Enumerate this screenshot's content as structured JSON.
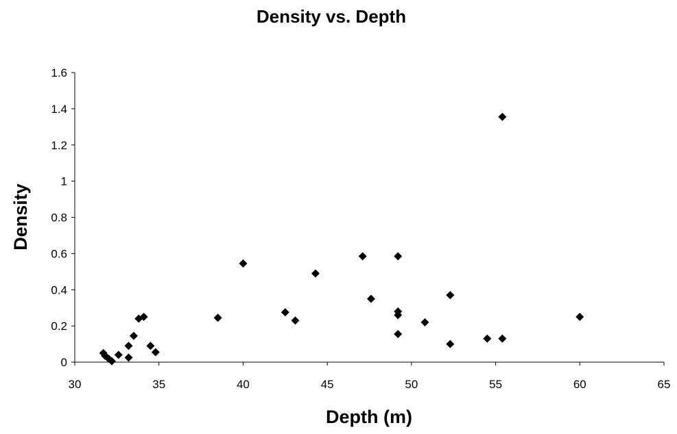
{
  "chart_data": {
    "type": "scatter",
    "title": "Density vs. Depth",
    "xlabel": "Depth (m)",
    "ylabel": "Density",
    "xlim": [
      30,
      65
    ],
    "ylim": [
      0,
      1.6
    ],
    "x_ticks": [
      30,
      35,
      40,
      45,
      50,
      55,
      60,
      65
    ],
    "y_ticks": [
      0,
      0.2,
      0.4,
      0.6,
      0.8,
      1,
      1.2,
      1.4,
      1.6
    ],
    "y_tick_labels": [
      "0",
      "0.2",
      "0.4",
      "0.6",
      "0.8",
      "1",
      "1.2",
      "1.4",
      "1.6"
    ],
    "grid": false,
    "legend": "none",
    "marker": "diamond",
    "marker_color": "#000000",
    "series": [
      {
        "points": [
          {
            "x": 31.7,
            "y": 0.05
          },
          {
            "x": 31.8,
            "y": 0.035
          },
          {
            "x": 32.0,
            "y": 0.02
          },
          {
            "x": 32.2,
            "y": 0.005
          },
          {
            "x": 32.6,
            "y": 0.04
          },
          {
            "x": 33.2,
            "y": 0.09
          },
          {
            "x": 33.2,
            "y": 0.025
          },
          {
            "x": 33.5,
            "y": 0.145
          },
          {
            "x": 33.8,
            "y": 0.24
          },
          {
            "x": 34.1,
            "y": 0.25
          },
          {
            "x": 34.5,
            "y": 0.09
          },
          {
            "x": 34.8,
            "y": 0.055
          },
          {
            "x": 38.5,
            "y": 0.245
          },
          {
            "x": 40.0,
            "y": 0.545
          },
          {
            "x": 42.5,
            "y": 0.275
          },
          {
            "x": 43.1,
            "y": 0.23
          },
          {
            "x": 44.3,
            "y": 0.49
          },
          {
            "x": 47.1,
            "y": 0.585
          },
          {
            "x": 47.6,
            "y": 0.35
          },
          {
            "x": 49.2,
            "y": 0.585
          },
          {
            "x": 49.2,
            "y": 0.28
          },
          {
            "x": 49.2,
            "y": 0.26
          },
          {
            "x": 49.2,
            "y": 0.155
          },
          {
            "x": 50.8,
            "y": 0.22
          },
          {
            "x": 52.3,
            "y": 0.37
          },
          {
            "x": 52.3,
            "y": 0.1
          },
          {
            "x": 54.5,
            "y": 0.13
          },
          {
            "x": 55.4,
            "y": 1.355
          },
          {
            "x": 55.4,
            "y": 0.13
          },
          {
            "x": 60.0,
            "y": 0.25
          }
        ]
      }
    ]
  }
}
